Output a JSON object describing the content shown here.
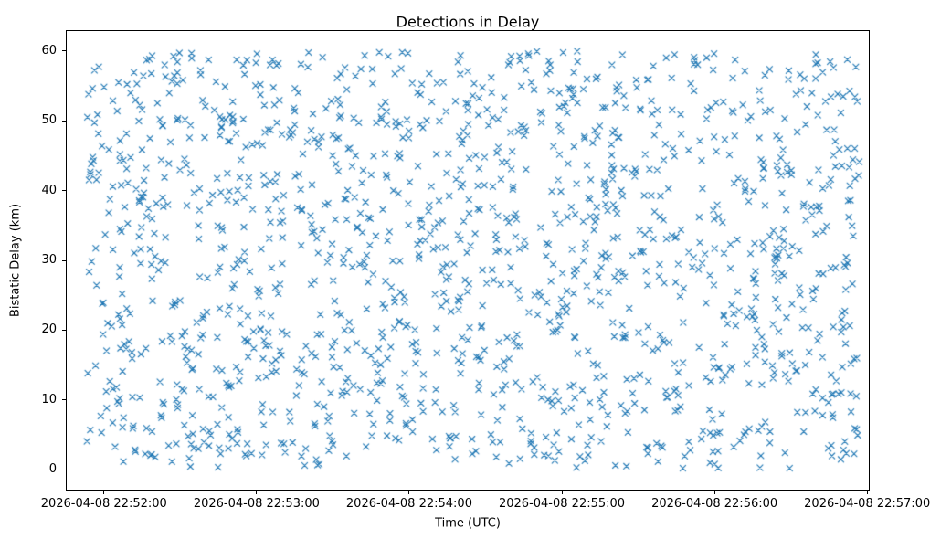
{
  "chart_data": {
    "type": "scatter",
    "title": "Detections in Delay",
    "xlabel": "Time (UTC)",
    "ylabel": "Bistatic Delay (km)",
    "x_tick_labels": [
      "2026-04-08 22:52:00",
      "2026-04-08 22:53:00",
      "2026-04-08 22:54:00",
      "2026-04-08 22:55:00",
      "2026-04-08 22:56:00",
      "2026-04-08 22:57:00"
    ],
    "x_axis_start": "2026-04-08 22:51:45",
    "x_span_seconds": 316,
    "x_tick_offsets_seconds": [
      15,
      75,
      135,
      195,
      255,
      315
    ],
    "y_ticks": [
      0,
      10,
      20,
      30,
      40,
      50,
      60
    ],
    "ylim": [
      -3,
      63
    ],
    "grid": false,
    "legend": "none",
    "marker": "x",
    "marker_size_px": 7,
    "marker_color": "#1f77b4",
    "background_color": "#ffffff",
    "point_count": 1500,
    "distribution": "uniform-random",
    "x_data_range_seconds": [
      8,
      312
    ],
    "y_data_range": [
      0.2,
      60
    ],
    "seed": 42
  }
}
